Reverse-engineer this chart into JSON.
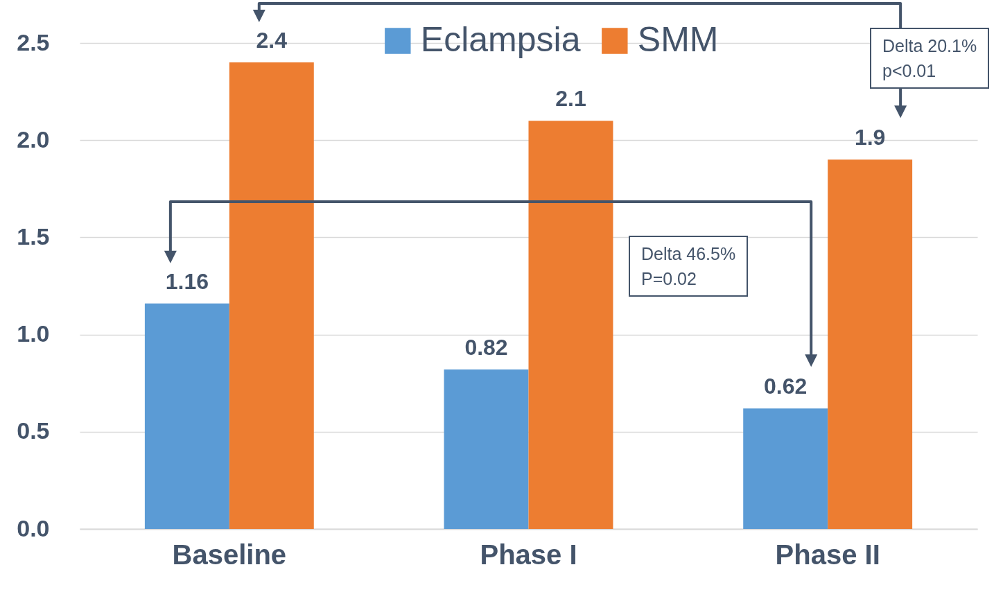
{
  "chart_data": {
    "type": "bar",
    "categories": [
      "Baseline",
      "Phase I",
      "Phase II"
    ],
    "series": [
      {
        "name": "Eclampsia",
        "color": "#5b9bd5",
        "values": [
          1.16,
          0.82,
          0.62
        ]
      },
      {
        "name": "SMM",
        "color": "#ed7d31",
        "values": [
          2.4,
          2.1,
          1.9
        ]
      }
    ],
    "ylim": [
      0,
      2.5
    ],
    "yticks": [
      {
        "value": 0,
        "label": "0.0"
      },
      {
        "value": 0.5,
        "label": "0.5"
      },
      {
        "value": 1,
        "label": "1.0"
      },
      {
        "value": 1.5,
        "label": "1.5"
      },
      {
        "value": 2,
        "label": "2.0"
      },
      {
        "value": 2.5,
        "label": "2.5"
      }
    ],
    "grid": "y",
    "legend": "top",
    "data_labels": true,
    "annotations": [
      "Delta 20.1%\np<0.01",
      "Delta 46.5%\nP=0.02"
    ]
  }
}
